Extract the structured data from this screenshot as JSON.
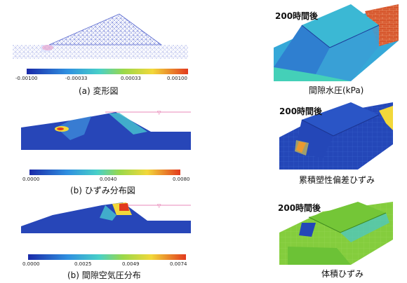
{
  "left": {
    "a": {
      "caption": "(a) 変形図",
      "ticks": [
        "-0.00100",
        "-0.00033",
        "0.00033",
        "0.00100"
      ]
    },
    "b": {
      "caption": "(b) ひずみ分布図",
      "ticks": [
        "0.0000",
        "0.0040",
        "0.0080"
      ]
    },
    "c": {
      "caption": "(b) 間隙空気圧分布",
      "ticks": [
        "0.0000",
        "0.0025",
        "0.0049",
        "0.0074"
      ]
    }
  },
  "right": {
    "r1": {
      "time": "200時間後",
      "caption": "間隙水圧(kPa)"
    },
    "r2": {
      "time": "200時間後",
      "caption": "累積塑性偏差ひずみ"
    },
    "r3": {
      "time": "200時間後",
      "caption": "体積ひずみ"
    }
  },
  "colors": {
    "jet_blue": "#1f3fbf",
    "jet_cyan": "#38c3e0",
    "jet_green": "#7fd24a",
    "jet_yellow": "#f4e23a",
    "jet_red": "#e03a1a",
    "brick": "#d8582e",
    "mesh_line": "#5a6ad0",
    "pink_line": "#e060a0"
  }
}
